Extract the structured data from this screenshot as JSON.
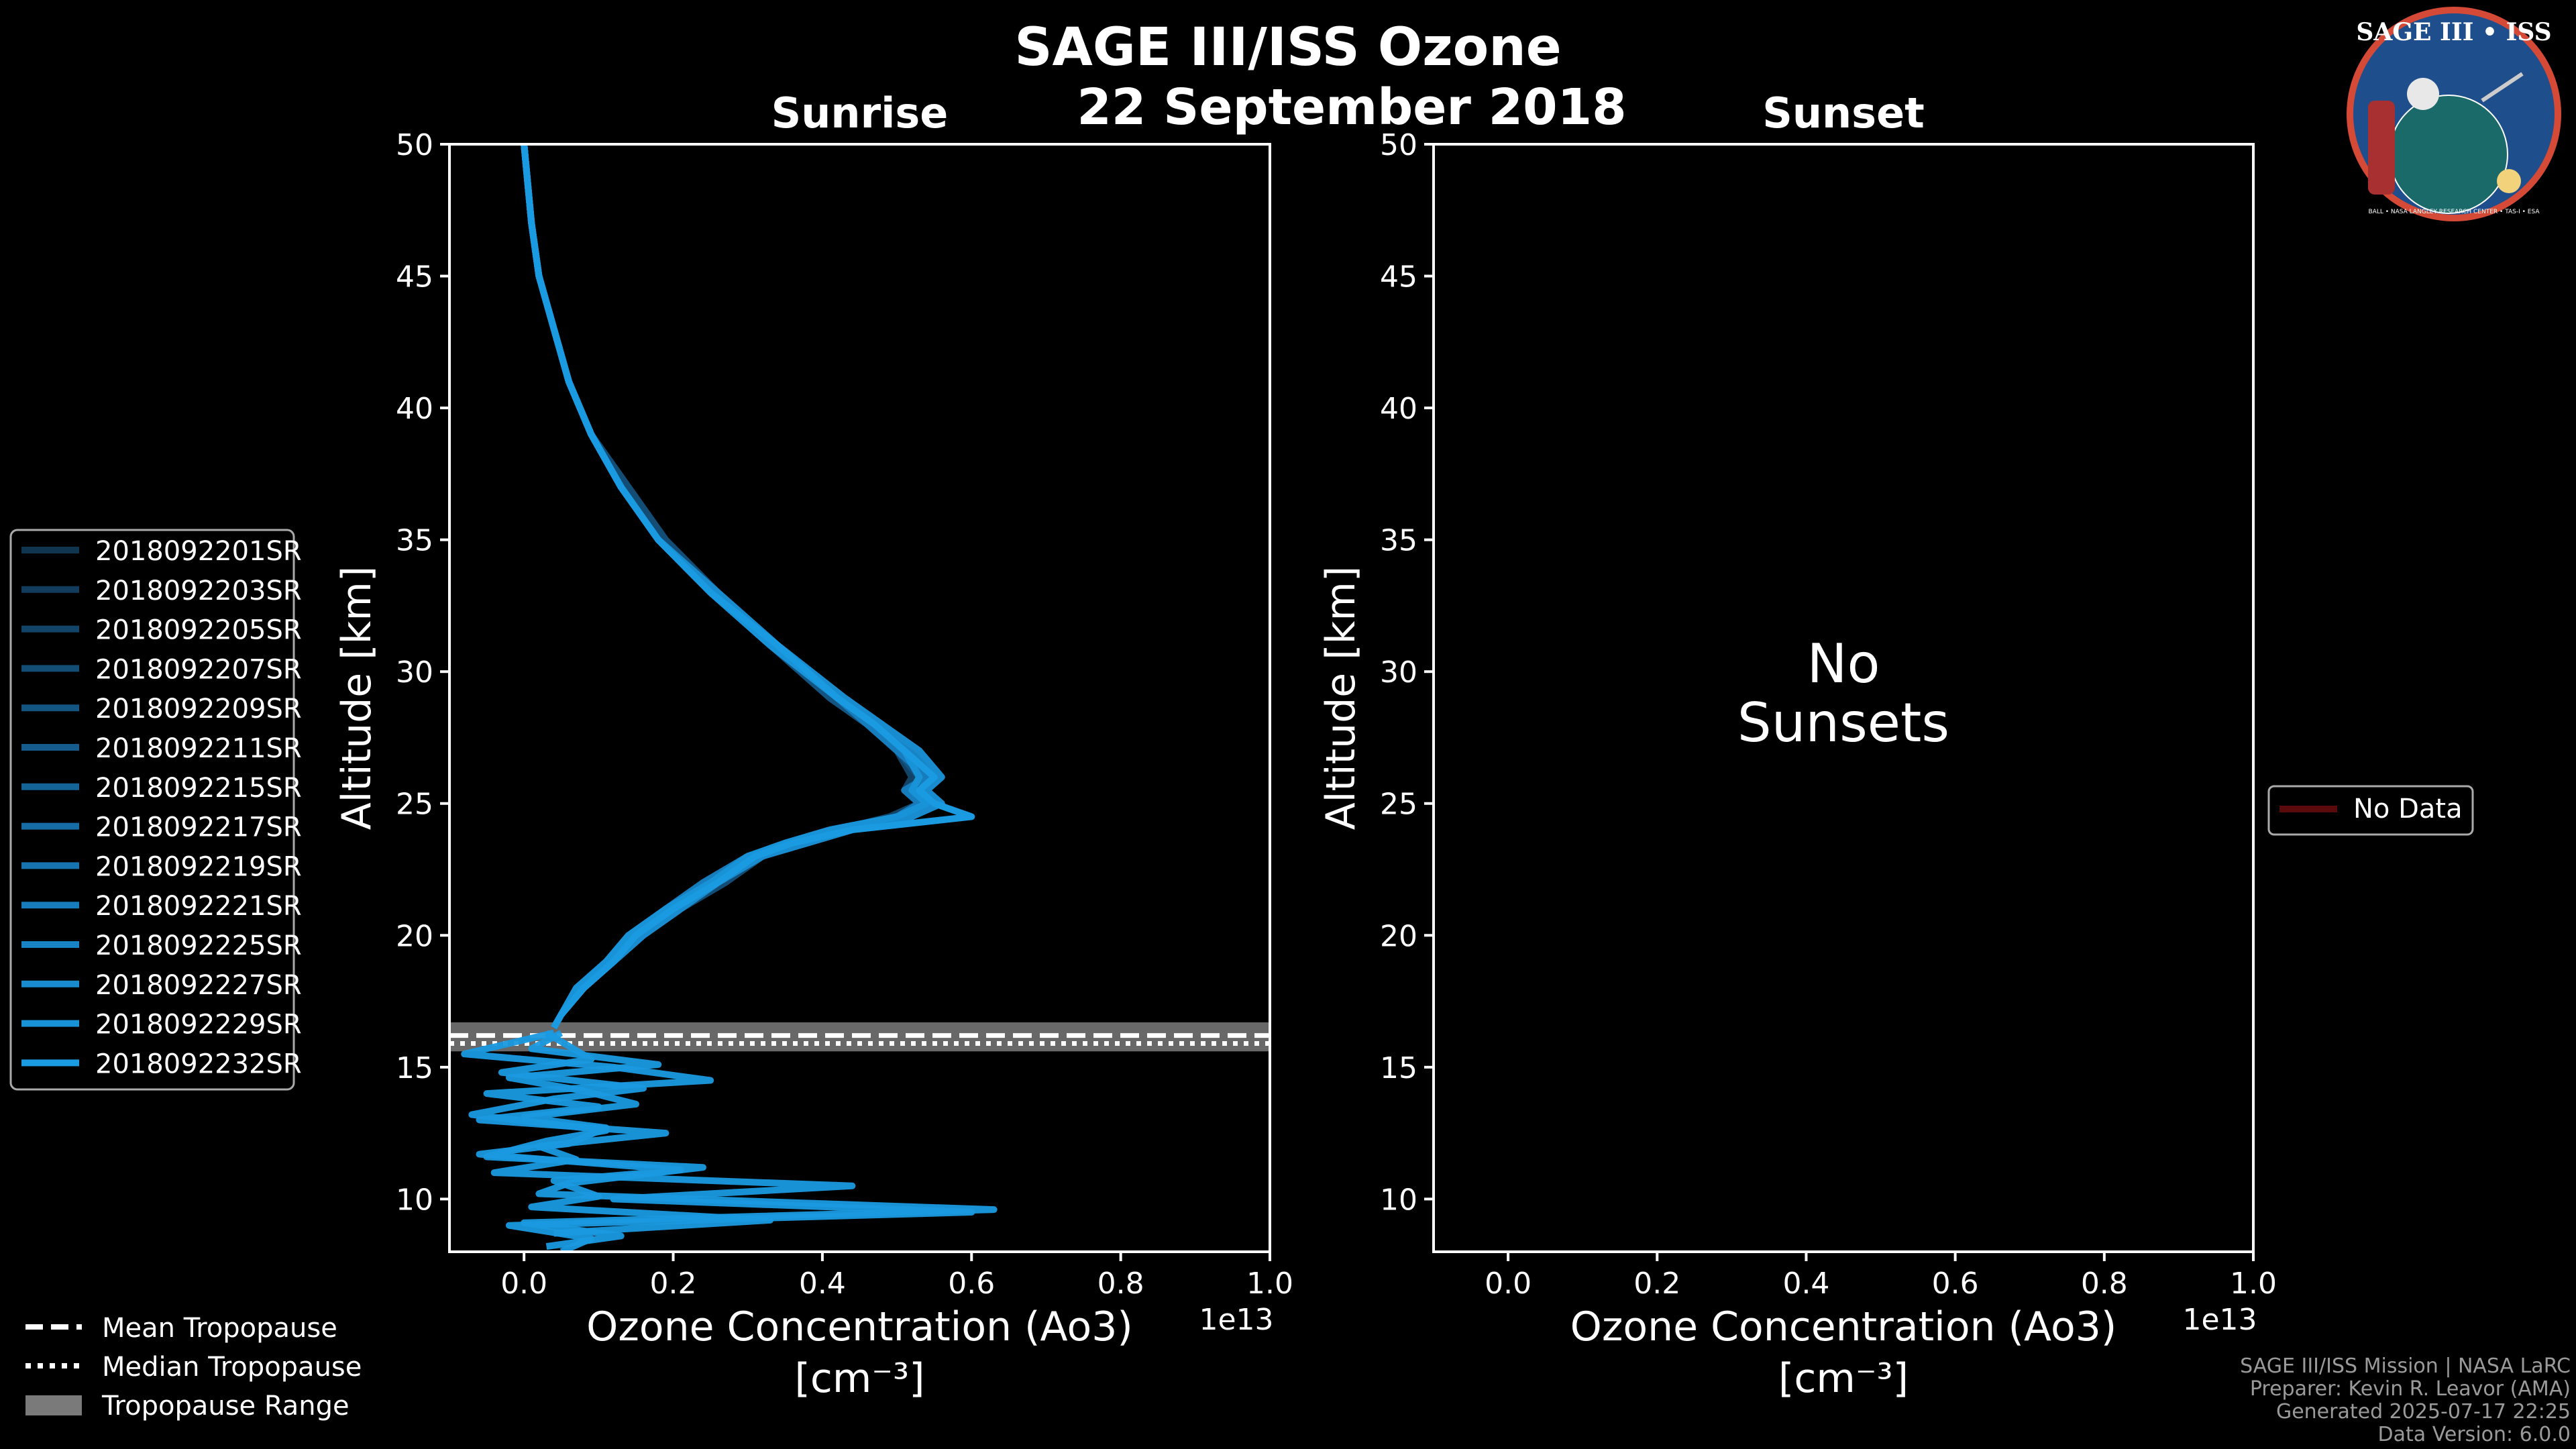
{
  "chart_data": {
    "type": "line",
    "title": "SAGE III/ISS Ozone",
    "subtitle": "22 September 2018",
    "xlabel": "Ozone Concentration (Ao3)",
    "xunit_label": "[cm⁻³]",
    "x_exponent_label": "1e13",
    "ylabel": "Altitude [km]",
    "xlim": [
      -0.1,
      1.0
    ],
    "ylim": [
      8,
      50
    ],
    "x_ticks": [
      0.0,
      0.2,
      0.4,
      0.6,
      0.8,
      1.0
    ],
    "x_tick_labels": [
      "0.0",
      "0.2",
      "0.4",
      "0.6",
      "0.8",
      "1.0"
    ],
    "y_ticks": [
      10,
      15,
      20,
      25,
      30,
      35,
      40,
      45,
      50
    ],
    "y_tick_labels": [
      "10",
      "15",
      "20",
      "25",
      "30",
      "35",
      "40",
      "45",
      "50"
    ],
    "panels": [
      {
        "name": "Sunrise",
        "title": "Sunrise",
        "altitude_km": [
          50,
          47,
          45,
          43,
          41,
          39,
          37,
          35,
          33,
          31,
          29,
          28,
          27,
          26,
          25.5,
          25,
          24.5,
          24,
          23.5,
          23,
          22,
          21,
          20,
          19,
          18,
          17,
          16.5
        ],
        "series": [
          {
            "name": "2018092201SR",
            "color": "#0f3550",
            "values": [
              0.0,
              0.01,
              0.02,
              0.04,
              0.06,
              0.09,
              0.13,
              0.18,
              0.25,
              0.34,
              0.42,
              0.47,
              0.51,
              0.53,
              0.52,
              0.54,
              0.5,
              0.42,
              0.36,
              0.31,
              0.25,
              0.2,
              0.15,
              0.11,
              0.08,
              0.05,
              0.04
            ]
          },
          {
            "name": "2018092203SR",
            "color": "#113c5c",
            "values": [
              0.0,
              0.01,
              0.02,
              0.04,
              0.06,
              0.09,
              0.13,
              0.18,
              0.25,
              0.34,
              0.43,
              0.48,
              0.52,
              0.55,
              0.53,
              0.55,
              0.51,
              0.43,
              0.37,
              0.32,
              0.26,
              0.2,
              0.16,
              0.12,
              0.08,
              0.05,
              0.04
            ]
          },
          {
            "name": "2018092205SR",
            "color": "#124468",
            "values": [
              0.0,
              0.01,
              0.02,
              0.04,
              0.06,
              0.09,
              0.13,
              0.18,
              0.25,
              0.33,
              0.42,
              0.46,
              0.5,
              0.52,
              0.51,
              0.53,
              0.49,
              0.42,
              0.35,
              0.3,
              0.24,
              0.19,
              0.15,
              0.11,
              0.07,
              0.05,
              0.04
            ]
          },
          {
            "name": "2018092207SR",
            "color": "#134c74",
            "values": [
              0.0,
              0.01,
              0.02,
              0.04,
              0.06,
              0.09,
              0.14,
              0.19,
              0.26,
              0.34,
              0.43,
              0.47,
              0.52,
              0.56,
              0.54,
              0.55,
              0.52,
              0.44,
              0.38,
              0.32,
              0.27,
              0.21,
              0.16,
              0.12,
              0.08,
              0.05,
              0.04
            ]
          },
          {
            "name": "2018092209SR",
            "color": "#145480",
            "values": [
              0.0,
              0.01,
              0.02,
              0.04,
              0.06,
              0.09,
              0.13,
              0.18,
              0.25,
              0.33,
              0.41,
              0.46,
              0.5,
              0.53,
              0.52,
              0.53,
              0.5,
              0.41,
              0.35,
              0.31,
              0.25,
              0.19,
              0.14,
              0.11,
              0.07,
              0.05,
              0.04
            ]
          },
          {
            "name": "2018092211SR",
            "color": "#155c8c",
            "values": [
              0.0,
              0.01,
              0.02,
              0.04,
              0.06,
              0.09,
              0.13,
              0.18,
              0.26,
              0.34,
              0.42,
              0.48,
              0.52,
              0.54,
              0.53,
              0.56,
              0.51,
              0.43,
              0.36,
              0.31,
              0.26,
              0.2,
              0.15,
              0.12,
              0.08,
              0.05,
              0.04
            ]
          },
          {
            "name": "2018092215SR",
            "color": "#156498",
            "values": [
              0.0,
              0.01,
              0.02,
              0.04,
              0.06,
              0.09,
              0.13,
              0.18,
              0.25,
              0.34,
              0.42,
              0.47,
              0.51,
              0.55,
              0.52,
              0.54,
              0.51,
              0.42,
              0.37,
              0.32,
              0.25,
              0.2,
              0.15,
              0.11,
              0.08,
              0.05,
              0.04
            ]
          },
          {
            "name": "2018092217SR",
            "color": "#166ca4",
            "values": [
              0.0,
              0.01,
              0.02,
              0.04,
              0.06,
              0.09,
              0.13,
              0.18,
              0.25,
              0.33,
              0.42,
              0.47,
              0.51,
              0.53,
              0.52,
              0.55,
              0.5,
              0.42,
              0.36,
              0.31,
              0.25,
              0.2,
              0.15,
              0.11,
              0.08,
              0.05,
              0.04
            ]
          },
          {
            "name": "2018092219SR",
            "color": "#1774b0",
            "values": [
              0.0,
              0.01,
              0.02,
              0.04,
              0.06,
              0.09,
              0.13,
              0.18,
              0.26,
              0.34,
              0.43,
              0.48,
              0.52,
              0.55,
              0.53,
              0.54,
              0.52,
              0.43,
              0.37,
              0.32,
              0.26,
              0.21,
              0.16,
              0.12,
              0.08,
              0.05,
              0.04
            ]
          },
          {
            "name": "2018092221SR",
            "color": "#177cbc",
            "values": [
              0.0,
              0.01,
              0.02,
              0.04,
              0.06,
              0.09,
              0.13,
              0.18,
              0.25,
              0.33,
              0.42,
              0.46,
              0.5,
              0.54,
              0.51,
              0.53,
              0.5,
              0.42,
              0.36,
              0.3,
              0.24,
              0.19,
              0.15,
              0.11,
              0.07,
              0.05,
              0.04
            ]
          },
          {
            "name": "2018092225SR",
            "color": "#1884c6",
            "values": [
              0.0,
              0.01,
              0.02,
              0.04,
              0.06,
              0.09,
              0.13,
              0.18,
              0.25,
              0.34,
              0.42,
              0.47,
              0.52,
              0.55,
              0.53,
              0.55,
              0.51,
              0.43,
              0.37,
              0.31,
              0.25,
              0.2,
              0.15,
              0.11,
              0.08,
              0.05,
              0.04
            ]
          },
          {
            "name": "2018092227SR",
            "color": "#198ccf",
            "values": [
              0.0,
              0.01,
              0.02,
              0.04,
              0.06,
              0.09,
              0.13,
              0.18,
              0.26,
              0.34,
              0.43,
              0.48,
              0.53,
              0.56,
              0.54,
              0.56,
              0.52,
              0.44,
              0.38,
              0.32,
              0.26,
              0.21,
              0.16,
              0.12,
              0.08,
              0.05,
              0.04
            ]
          },
          {
            "name": "2018092229SR",
            "color": "#1993d8",
            "values": [
              0.0,
              0.01,
              0.02,
              0.04,
              0.06,
              0.09,
              0.13,
              0.18,
              0.25,
              0.33,
              0.42,
              0.47,
              0.51,
              0.53,
              0.52,
              0.54,
              0.5,
              0.41,
              0.35,
              0.3,
              0.25,
              0.19,
              0.14,
              0.11,
              0.07,
              0.05,
              0.04
            ]
          },
          {
            "name": "2018092232SR",
            "color": "#1a9ae0",
            "values": [
              0.0,
              0.01,
              0.02,
              0.04,
              0.06,
              0.09,
              0.13,
              0.18,
              0.25,
              0.34,
              0.42,
              0.47,
              0.51,
              0.55,
              0.53,
              0.55,
              0.6,
              0.44,
              0.36,
              0.31,
              0.26,
              0.2,
              0.15,
              0.12,
              0.08,
              0.05,
              0.04
            ]
          }
        ],
        "lower_spikes": [
          {
            "altitude_km": [
              16.3,
              15.5,
              15.0,
              14.5,
              14.0,
              13.5,
              13.0,
              12.5,
              12.0,
              11.5,
              11.0,
              10.5,
              10.0,
              9.5,
              9.0,
              8.5,
              8.0
            ],
            "values": [
              0.04,
              -0.08,
              0.12,
              0.25,
              -0.05,
              0.1,
              -0.06,
              0.19,
              0.02,
              0.07,
              -0.04,
              0.44,
              0.12,
              0.6,
              -0.02,
              0.09,
              0.05
            ]
          },
          {
            "altitude_km": [
              16.3,
              15.3,
              14.8,
              14.2,
              13.8,
              13.2,
              12.6,
              12.2,
              11.6,
              11.2,
              10.6,
              10.2,
              9.6,
              9.1,
              8.6,
              8.2
            ],
            "values": [
              0.03,
              0.09,
              -0.03,
              0.16,
              0.04,
              -0.07,
              0.11,
              0.03,
              -0.05,
              0.24,
              0.06,
              0.02,
              0.63,
              0.0,
              0.13,
              0.03
            ]
          },
          {
            "altitude_km": [
              16.3,
              15.7,
              15.1,
              14.6,
              14.1,
              13.6,
              13.1,
              12.7,
              12.1,
              11.7,
              11.1,
              10.7,
              10.1,
              9.7,
              9.2,
              8.7
            ],
            "values": [
              0.05,
              0.01,
              0.18,
              -0.02,
              0.08,
              0.15,
              0.0,
              0.11,
              0.06,
              -0.06,
              0.21,
              0.04,
              0.1,
              0.01,
              0.33,
              0.04
            ]
          }
        ],
        "tropopause": {
          "mean_km": 16.2,
          "median_km": 15.9,
          "range_km": [
            15.6,
            16.7
          ]
        }
      },
      {
        "name": "Sunset",
        "title": "Sunset",
        "message": "No\nSunsets",
        "message_line1": "No",
        "message_line2": "Sunsets",
        "series": []
      }
    ],
    "legend_sunrise": [
      "2018092201SR",
      "2018092203SR",
      "2018092205SR",
      "2018092207SR",
      "2018092209SR",
      "2018092211SR",
      "2018092215SR",
      "2018092217SR",
      "2018092219SR",
      "2018092221SR",
      "2018092225SR",
      "2018092227SR",
      "2018092229SR",
      "2018092232SR"
    ],
    "legend_sunset": [
      "No Data"
    ],
    "legend_tropopause": [
      "Mean Tropopause",
      "Median Tropopause",
      "Tropopause Range"
    ],
    "legend_placement": {
      "sunrise": "left",
      "sunset": "right",
      "tropopause": "bottom-left"
    }
  },
  "logo": {
    "text": "SAGE III • ISS",
    "subtext": "BALL • NASA LANGLEY RESEARCH CENTER • TAS-I • ESA",
    "bg_color": "#1e4e8c",
    "ring_color": "#d44a36"
  },
  "footer": {
    "line1": "SAGE III/ISS Mission | NASA LaRC",
    "line2": "Preparer: Kevin R. Leavor (AMA)",
    "line3": "Generated 2025-07-17 22:25",
    "line4": "Data Version: 6.0.0"
  },
  "colors": {
    "background": "#000000",
    "foreground": "#ffffff",
    "trop_band": "#7a7a7a",
    "nodata": "#5a0a0a"
  }
}
